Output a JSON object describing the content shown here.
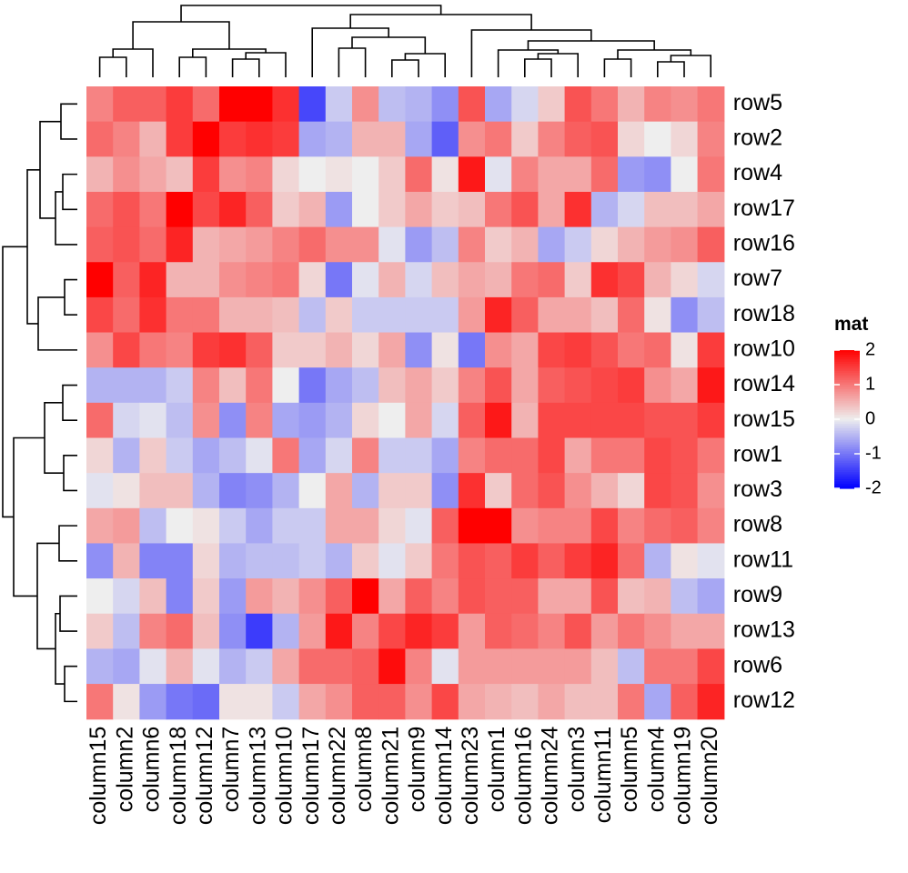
{
  "chart_data": {
    "type": "heatmap",
    "title": "",
    "xlabel": "",
    "ylabel": "",
    "rows": [
      "row5",
      "row2",
      "row4",
      "row17",
      "row16",
      "row7",
      "row18",
      "row10",
      "row14",
      "row15",
      "row1",
      "row3",
      "row8",
      "row11",
      "row9",
      "row13",
      "row6",
      "row12"
    ],
    "columns": [
      "column15",
      "column2",
      "column6",
      "column18",
      "column12",
      "column7",
      "column13",
      "column10",
      "column17",
      "column22",
      "column8",
      "column21",
      "column9",
      "column14",
      "column23",
      "column1",
      "column16",
      "column24",
      "column3",
      "column11",
      "column5",
      "column4",
      "column19",
      "column20"
    ],
    "values": [
      [
        0.9,
        1.2,
        1.2,
        1.5,
        1.1,
        2.2,
        2.2,
        1.6,
        -1.4,
        -0.3,
        0.8,
        -0.4,
        -0.5,
        -0.8,
        1.3,
        -0.6,
        -0.2,
        0.3,
        1.3,
        1.0,
        0.5,
        0.9,
        0.8,
        1.0
      ],
      [
        1.1,
        0.9,
        0.5,
        1.5,
        2.0,
        1.5,
        1.6,
        1.5,
        -0.6,
        -0.5,
        0.5,
        0.5,
        -0.6,
        -1.2,
        0.8,
        1.0,
        0.3,
        0.9,
        1.2,
        1.3,
        0.2,
        0.0,
        0.2,
        0.9
      ],
      [
        0.5,
        0.8,
        0.6,
        0.4,
        1.5,
        0.8,
        0.9,
        0.2,
        0.0,
        0.1,
        0.0,
        0.3,
        1.1,
        0.1,
        1.8,
        -0.1,
        0.9,
        0.6,
        0.6,
        1.1,
        -0.7,
        -0.8,
        0.0,
        1.0
      ],
      [
        1.1,
        1.3,
        1.0,
        2.0,
        1.4,
        1.7,
        1.2,
        0.3,
        0.5,
        -0.7,
        0.0,
        0.3,
        0.6,
        0.3,
        0.4,
        1.0,
        1.3,
        0.6,
        1.6,
        -0.5,
        -0.2,
        0.4,
        0.4,
        0.6
      ],
      [
        1.2,
        1.3,
        1.1,
        1.7,
        0.5,
        0.6,
        0.7,
        0.9,
        1.1,
        0.8,
        0.8,
        -0.1,
        -0.7,
        -0.4,
        0.9,
        0.3,
        0.5,
        -0.6,
        -0.3,
        0.2,
        0.5,
        0.7,
        0.8,
        1.2
      ],
      [
        2.2,
        1.2,
        1.7,
        0.5,
        0.5,
        0.8,
        0.9,
        1.0,
        0.2,
        -1.0,
        -0.1,
        0.5,
        -0.2,
        0.4,
        0.6,
        0.5,
        1.0,
        1.1,
        0.3,
        1.6,
        1.4,
        0.5,
        0.2,
        -0.2
      ],
      [
        1.4,
        1.1,
        1.6,
        1.0,
        1.0,
        0.5,
        0.5,
        0.4,
        -0.4,
        0.3,
        -0.3,
        -0.3,
        -0.3,
        -0.3,
        0.7,
        1.7,
        1.2,
        0.6,
        0.6,
        0.4,
        1.1,
        0.1,
        -0.8,
        -0.4
      ],
      [
        0.8,
        1.4,
        1.0,
        0.9,
        1.5,
        1.6,
        1.2,
        0.3,
        0.3,
        0.5,
        0.2,
        0.6,
        -0.8,
        0.1,
        -1.0,
        0.8,
        0.6,
        1.4,
        1.5,
        1.3,
        1.0,
        1.1,
        0.1,
        1.5
      ],
      [
        -0.5,
        -0.5,
        -0.5,
        -0.3,
        0.9,
        0.4,
        1.0,
        0.0,
        -1.0,
        -0.6,
        -0.4,
        0.4,
        0.6,
        0.3,
        0.9,
        1.3,
        0.6,
        1.2,
        1.3,
        1.4,
        1.5,
        0.8,
        0.6,
        1.8
      ],
      [
        1.1,
        -0.2,
        -0.1,
        -0.4,
        0.8,
        -0.8,
        0.9,
        -0.6,
        -0.7,
        -0.5,
        0.2,
        0.0,
        0.6,
        -0.2,
        1.2,
        1.8,
        0.5,
        1.4,
        1.4,
        1.4,
        1.4,
        1.3,
        1.3,
        1.5
      ],
      [
        0.2,
        -0.5,
        0.3,
        -0.3,
        -0.6,
        -0.4,
        -0.1,
        1.0,
        -0.6,
        -0.2,
        0.9,
        -0.3,
        -0.3,
        -0.6,
        0.9,
        1.1,
        1.1,
        1.4,
        0.6,
        1.0,
        1.0,
        1.4,
        1.3,
        1.0
      ],
      [
        -0.1,
        0.1,
        0.4,
        0.4,
        -0.5,
        -0.9,
        -0.8,
        -0.5,
        0.0,
        0.6,
        -0.5,
        0.3,
        0.3,
        -0.8,
        1.6,
        0.3,
        1.1,
        1.3,
        0.8,
        0.5,
        0.2,
        1.4,
        1.3,
        0.8
      ],
      [
        0.6,
        0.7,
        -0.4,
        0.0,
        0.1,
        -0.3,
        -0.6,
        -0.3,
        -0.3,
        0.6,
        0.6,
        0.2,
        -0.1,
        1.2,
        2.0,
        2.1,
        0.8,
        0.9,
        0.9,
        1.4,
        0.9,
        1.1,
        1.2,
        0.9
      ],
      [
        -0.8,
        0.5,
        -0.9,
        -0.9,
        0.2,
        -0.5,
        -0.4,
        -0.4,
        -0.3,
        -0.5,
        0.3,
        -0.1,
        0.3,
        1.0,
        1.3,
        1.2,
        1.5,
        1.2,
        1.5,
        1.7,
        1.1,
        -0.5,
        0.1,
        -0.1
      ],
      [
        0.0,
        -0.2,
        0.4,
        -0.9,
        0.3,
        -0.7,
        0.7,
        0.5,
        0.8,
        1.2,
        2.0,
        0.6,
        1.2,
        0.9,
        1.3,
        1.2,
        1.2,
        0.6,
        0.6,
        1.3,
        0.4,
        0.5,
        -0.4,
        -0.6
      ],
      [
        0.3,
        -0.4,
        0.9,
        1.1,
        0.4,
        -0.8,
        -1.5,
        -0.5,
        0.7,
        1.8,
        0.9,
        1.4,
        1.7,
        1.5,
        0.7,
        1.2,
        1.1,
        0.9,
        1.3,
        0.7,
        1.0,
        0.8,
        0.6,
        0.6
      ],
      [
        -0.5,
        -0.6,
        -0.1,
        0.5,
        -0.1,
        -0.5,
        -0.3,
        0.6,
        1.1,
        1.1,
        1.2,
        1.9,
        0.9,
        -0.1,
        0.7,
        0.7,
        0.7,
        0.7,
        0.7,
        0.4,
        -0.4,
        1.0,
        1.0,
        1.4
      ],
      [
        1.0,
        0.1,
        -0.7,
        -1.0,
        -1.1,
        0.1,
        0.1,
        -0.3,
        0.6,
        0.8,
        1.2,
        1.2,
        0.8,
        1.4,
        0.6,
        0.5,
        0.4,
        0.6,
        0.4,
        0.4,
        1.0,
        -0.6,
        1.2,
        1.7
      ]
    ],
    "color_scale": {
      "low": "#0000FF",
      "mid": "#EEEEEE",
      "high": "#FF0000",
      "range": [
        -2,
        2
      ]
    },
    "legend": {
      "title": "mat",
      "ticks": [
        "2",
        "1",
        "0",
        "-1",
        "-2"
      ],
      "tick_values": [
        2,
        1,
        0,
        -1,
        -2
      ],
      "placement": "right"
    },
    "line_color": "#000000"
  }
}
